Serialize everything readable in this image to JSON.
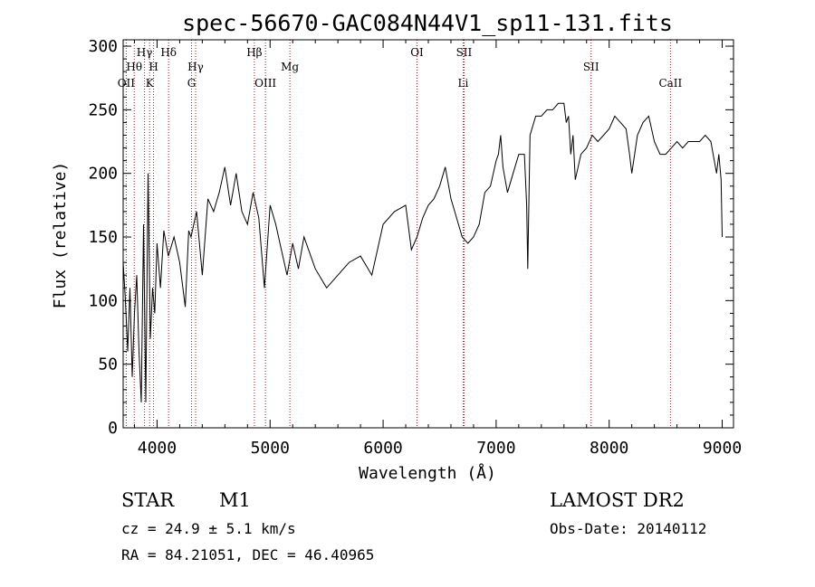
{
  "chart_data": {
    "type": "line",
    "title": "spec-56670-GAC084N44V1_sp11-131.fits",
    "xlabel": "Wavelength (Å)",
    "ylabel": "Flux (relative)",
    "xlim": [
      3700,
      9100
    ],
    "ylim": [
      0,
      305
    ],
    "xticks": [
      4000,
      5000,
      6000,
      7000,
      8000,
      9000
    ],
    "yticks": [
      0,
      50,
      100,
      150,
      200,
      250,
      300
    ],
    "grid": false,
    "line_color": "#000000",
    "marker_color": "#aa1111",
    "series": [
      {
        "x": [
          3700,
          3720,
          3740,
          3760,
          3780,
          3800,
          3820,
          3840,
          3860,
          3880,
          3900,
          3920,
          3940,
          3960,
          3980,
          4000,
          4030,
          4060,
          4100,
          4150,
          4200,
          4250,
          4280,
          4300,
          4350,
          4400,
          4450,
          4500,
          4550,
          4600,
          4650,
          4700,
          4750,
          4800,
          4850,
          4900,
          4950,
          5000,
          5050,
          5100,
          5150,
          5200,
          5250,
          5300,
          5400,
          5500,
          5600,
          5700,
          5800,
          5900,
          6000,
          6100,
          6200,
          6250,
          6300,
          6350,
          6400,
          6450,
          6500,
          6550,
          6600,
          6650,
          6700,
          6750,
          6800,
          6850,
          6900,
          6950,
          7000,
          7020,
          7040,
          7060,
          7100,
          7150,
          7200,
          7250,
          7270,
          7280,
          7300,
          7350,
          7400,
          7450,
          7500,
          7550,
          7600,
          7620,
          7640,
          7660,
          7680,
          7700,
          7750,
          7800,
          7850,
          7900,
          7950,
          8000,
          8050,
          8100,
          8150,
          8180,
          8200,
          8250,
          8300,
          8350,
          8400,
          8450,
          8500,
          8550,
          8600,
          8650,
          8700,
          8750,
          8800,
          8850,
          8900,
          8950,
          8970,
          8990,
          9000
        ],
        "y": [
          130,
          100,
          60,
          110,
          40,
          90,
          120,
          60,
          20,
          160,
          20,
          200,
          70,
          110,
          90,
          145,
          110,
          155,
          135,
          150,
          130,
          95,
          155,
          150,
          170,
          120,
          180,
          170,
          185,
          205,
          175,
          200,
          170,
          160,
          185,
          165,
          110,
          175,
          160,
          140,
          120,
          145,
          125,
          150,
          125,
          110,
          120,
          130,
          135,
          120,
          160,
          170,
          175,
          140,
          150,
          165,
          175,
          180,
          190,
          205,
          180,
          165,
          150,
          145,
          150,
          160,
          185,
          190,
          210,
          215,
          230,
          205,
          185,
          200,
          215,
          215,
          175,
          125,
          230,
          245,
          245,
          250,
          250,
          255,
          255,
          240,
          245,
          215,
          230,
          195,
          215,
          220,
          230,
          225,
          230,
          235,
          245,
          240,
          235,
          215,
          200,
          230,
          240,
          245,
          225,
          215,
          215,
          220,
          225,
          220,
          225,
          225,
          225,
          230,
          225,
          200,
          215,
          195,
          150
        ]
      }
    ],
    "marker_lines": [
      {
        "name": "OII",
        "x": 3727,
        "row": 3
      },
      {
        "name": "Hθ",
        "x": 3798,
        "row": 2
      },
      {
        "name": "Hγ",
        "x": 3889,
        "row": 1
      },
      {
        "name": "H",
        "x": 3969,
        "row": 2
      },
      {
        "name": "K",
        "x": 3934,
        "row": 3
      },
      {
        "name": "Hδ",
        "x": 4102,
        "row": 1
      },
      {
        "name": "Hγ",
        "x": 4341,
        "row": 2
      },
      {
        "name": "G",
        "x": 4305,
        "row": 3
      },
      {
        "name": "Hβ",
        "x": 4861,
        "row": 1
      },
      {
        "name": "OIII",
        "x": 4959,
        "row": 3
      },
      {
        "name": "Mg",
        "x": 5175,
        "row": 2
      },
      {
        "name": "OI",
        "x": 6300,
        "row": 1
      },
      {
        "name": "SII",
        "x": 6716,
        "row": 1
      },
      {
        "name": "Li",
        "x": 6708,
        "row": 3
      },
      {
        "name": "SII",
        "x": 7840,
        "row": 2
      },
      {
        "name": "CaII",
        "x": 8542,
        "row": 3
      }
    ]
  },
  "info": {
    "class_label": "STAR",
    "subclass_label": "M1",
    "cz": "cz = 24.9 ± 5.1 km/s",
    "coords": "RA =  84.21051, DEC =  46.40965",
    "survey": "LAMOST DR2",
    "obs_date": "Obs-Date: 20140112"
  }
}
